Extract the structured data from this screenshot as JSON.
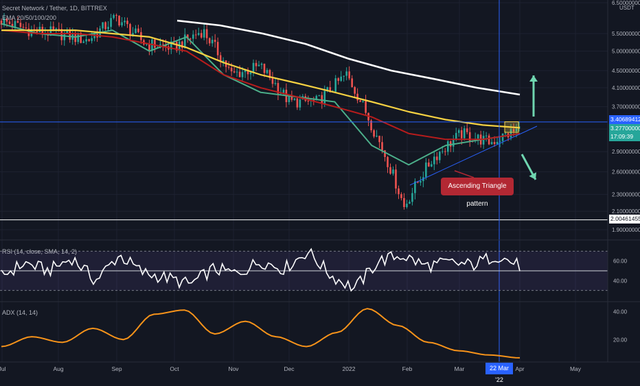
{
  "chart_title": "Secret Network / Tether, 1D, BITTREX",
  "ema_legend": "EMA 20/50/100/200",
  "currency": "USDT",
  "rsi_legend": "RSI (14, close, SMA, 14, 2)",
  "adx_legend": "ADX (14, 14)",
  "annotation": "Ascending Triangle pattern",
  "crosshair_date": "22 Mar '22",
  "price_tags": {
    "resistance": "3.40689412",
    "last": "3.27700000",
    "countdown": "17:09:39",
    "support": "2.00461455"
  },
  "colors": {
    "background": "#131722",
    "up": "#26a69a",
    "down": "#ef5350",
    "ema20": "#4caf8a",
    "ema50": "#b71c1c",
    "ema100": "#f5d142",
    "ema200": "#ffffff",
    "rsi": "#ffffff",
    "adx": "#f7931a",
    "crosshair": "#2962ff",
    "arrow": "#6fd6b0"
  },
  "chart_data": [
    {
      "type": "candlestick",
      "title": "Secret Network / Tether, 1D, BITTREX",
      "y_axis_ticks": [
        "6.50000000",
        "5.50000000",
        "5.00000000",
        "4.50000000",
        "4.10000000",
        "3.70000000",
        "3.27700000",
        "2.90000000",
        "2.60000000",
        "2.30000000",
        "2.10000000",
        "1.90000000"
      ],
      "x_axis_ticks": [
        "Jul",
        "Aug",
        "Sep",
        "Oct",
        "Nov",
        "Dec",
        "2022",
        "Feb",
        "Mar",
        "Apr",
        "May"
      ],
      "price_anchors": [
        {
          "date": "Jul",
          "close": 5.9
        },
        {
          "date": "Jul mid",
          "close": 5.6
        },
        {
          "date": "Aug",
          "close": 5.5
        },
        {
          "date": "Aug mid",
          "close": 5.3
        },
        {
          "date": "Sep",
          "close": 6.0
        },
        {
          "date": "Sep mid",
          "close": 5.2
        },
        {
          "date": "Oct",
          "close": 5.1
        },
        {
          "date": "Oct mid",
          "close": 5.6
        },
        {
          "date": "Nov",
          "close": 4.4
        },
        {
          "date": "Nov mid",
          "close": 4.6
        },
        {
          "date": "Dec",
          "close": 3.8
        },
        {
          "date": "Dec mid",
          "close": 3.8
        },
        {
          "date": "2022",
          "close": 4.4
        },
        {
          "date": "Jan mid",
          "close": 3.2
        },
        {
          "date": "Jan end",
          "close": 2.15
        },
        {
          "date": "Feb",
          "close": 2.8
        },
        {
          "date": "Feb mid",
          "close": 3.2
        },
        {
          "date": "Mar",
          "close": 3.05
        },
        {
          "date": "22 Mar '22",
          "close": 3.277
        }
      ],
      "horizontal_levels": [
        3.40689412,
        2.00461455
      ],
      "series": [
        {
          "name": "EMA 20",
          "values": [
            5.8,
            5.5,
            5.4,
            5.6,
            5.0,
            5.4,
            4.4,
            4.0,
            3.9,
            3.8,
            3.0,
            2.7,
            3.0,
            3.1,
            3.2
          ]
        },
        {
          "name": "EMA 50",
          "values": [
            5.6,
            5.5,
            5.5,
            5.4,
            5.2,
            5.0,
            4.4,
            4.1,
            3.9,
            3.7,
            3.5,
            3.2,
            3.1,
            3.1,
            3.2
          ]
        },
        {
          "name": "EMA 100",
          "values": [
            5.6,
            5.6,
            5.6,
            5.5,
            5.4,
            5.1,
            4.7,
            4.4,
            4.2,
            4.0,
            3.8,
            3.6,
            3.45,
            3.35,
            3.3
          ]
        },
        {
          "name": "EMA 200",
          "values": [
            5.9,
            5.75,
            5.5,
            5.2,
            4.8,
            4.5,
            4.3,
            4.1,
            3.95
          ]
        }
      ]
    },
    {
      "type": "line",
      "title": "RSI (14, close, SMA, 14, 2)",
      "y_axis_ticks": [
        "60.00",
        "40.00"
      ],
      "series": [
        {
          "name": "RSI",
          "values": [
            45,
            58,
            50,
            63,
            40,
            66,
            48,
            43,
            36,
            52,
            47,
            60,
            52,
            70,
            45,
            32,
            60,
            66,
            55,
            58,
            56,
            66,
            55
          ]
        }
      ]
    },
    {
      "type": "line",
      "title": "ADX (14, 14)",
      "y_axis_ticks": [
        "40.00",
        "20.00"
      ],
      "series": [
        {
          "name": "ADX",
          "values": [
            15,
            22,
            18,
            28,
            20,
            38,
            41,
            24,
            33,
            22,
            15,
            25,
            42,
            30,
            18,
            12,
            9,
            7
          ]
        }
      ]
    }
  ]
}
